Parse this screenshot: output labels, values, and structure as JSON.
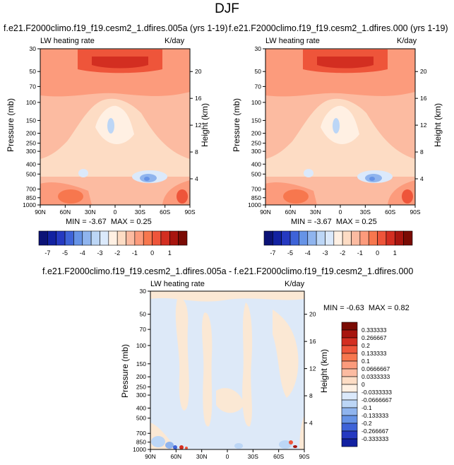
{
  "page": {
    "title": "DJF"
  },
  "colors": {
    "red_scale": [
      "#fff0e3",
      "#fddcc4",
      "#fcbba1",
      "#fc9b7c",
      "#f7774e",
      "#ee553a",
      "#d32e21",
      "#a8150f",
      "#7a0b04"
    ],
    "blue_scale": [
      "#dbe9fb",
      "#bcd6f6",
      "#8fb4ee",
      "#6693e6",
      "#3e63d8",
      "#2539c1",
      "#1221a1",
      "#0b1276"
    ],
    "diff_bg": "#dde9f8",
    "diff_pos": "#fbe8d4"
  },
  "chart_data": [
    {
      "type": "heatmap",
      "title": "f.e21.F2000climo.f19_f19.cesm2_1.dfires.005a (yrs 1-19)",
      "left_label": "LW heating rate",
      "right_label": "K/day",
      "xlabel": "",
      "ylabel": "Pressure (mb)",
      "y2label": "Height (km)",
      "x_ticks": [
        "90N",
        "60N",
        "30N",
        "0",
        "30S",
        "60S",
        "90S"
      ],
      "y_ticks": [
        "30",
        "50",
        "70",
        "100",
        "150",
        "200",
        "250",
        "300",
        "400",
        "500",
        "700",
        "850",
        "1000"
      ],
      "y2_ticks": [
        "20",
        "16",
        "12",
        "8",
        "4"
      ],
      "stats": {
        "min_label": "MIN =",
        "min": "-3.67",
        "max_label": "MAX =",
        "max": "0.25"
      },
      "colorbar_labels": [
        "-7",
        "-5",
        "-4",
        "-3",
        "-2",
        "-1",
        "0",
        "1"
      ]
    },
    {
      "type": "heatmap",
      "title": "f.e21.F2000climo.f19_f19.cesm2_1.dfires.000 (yrs 1-19)",
      "left_label": "LW heating rate",
      "right_label": "K/day",
      "xlabel": "",
      "ylabel": "Pressure (mb)",
      "y2label": "Height (km)",
      "x_ticks": [
        "90N",
        "60N",
        "30N",
        "0",
        "30S",
        "60S",
        "90S"
      ],
      "y_ticks": [
        "30",
        "50",
        "70",
        "100",
        "150",
        "200",
        "250",
        "300",
        "400",
        "500",
        "700",
        "850",
        "1000"
      ],
      "y2_ticks": [
        "20",
        "16",
        "12",
        "8",
        "4"
      ],
      "stats": {
        "min_label": "MIN =",
        "min": "-3.67",
        "max_label": "MAX =",
        "max": "0.25"
      },
      "colorbar_labels": [
        "-7",
        "-5",
        "-4",
        "-3",
        "-2",
        "-1",
        "0",
        "1"
      ]
    },
    {
      "type": "heatmap",
      "title": "f.e21.F2000climo.f19_f19.cesm2_1.dfires.005a - f.e21.F2000climo.f19_f19.cesm2_1.dfires.000",
      "left_label": "LW heating rate",
      "right_label": "K/day",
      "xlabel": "",
      "ylabel": "Pressure (mb)",
      "y2label": "Height (km)",
      "x_ticks": [
        "90N",
        "60N",
        "30N",
        "0",
        "30S",
        "60S",
        "90S"
      ],
      "y_ticks": [
        "30",
        "50",
        "70",
        "100",
        "150",
        "200",
        "250",
        "300",
        "400",
        "500",
        "700",
        "850",
        "1000"
      ],
      "y2_ticks": [
        "20",
        "16",
        "12",
        "8",
        "4"
      ],
      "stats": {
        "min_label": "MIN =",
        "min": "-0.63",
        "max_label": "MAX =",
        "max": "0.82"
      },
      "colorbar_labels": [
        "0.333333",
        "0.266667",
        "0.2",
        "0.133333",
        "0.1",
        "0.0666667",
        "0.0333333",
        "0",
        "-0.0333333",
        "-0.0666667",
        "-0.1",
        "-0.133333",
        "-0.2",
        "-0.266667",
        "-0.333333"
      ]
    }
  ]
}
